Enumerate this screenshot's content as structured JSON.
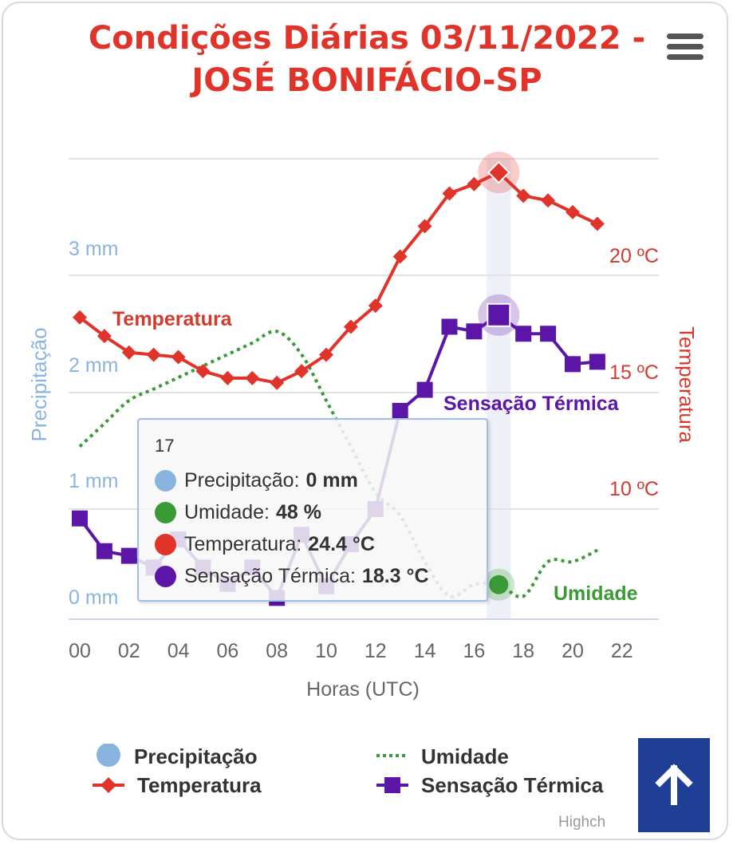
{
  "title_line1": "Condições Diárias 03/11/2022 -",
  "title_line2": "JOSÉ BONIFÁCIO-SP",
  "menu_icon": "hamburger-icon",
  "credits": "Highch",
  "colors": {
    "title": "#e0332a",
    "precip": "#8ab4e0",
    "umidade": "#3a9a35",
    "temperatura": "#e0332a",
    "sensacao": "#5b16a8",
    "button": "#1f3f96"
  },
  "chart_data": {
    "type": "line",
    "title": "Condições Diárias 03/11/2022 - JOSÉ BONIFÁCIO-SP",
    "xlabel": "Horas (UTC)",
    "x": [
      0,
      1,
      2,
      3,
      4,
      5,
      6,
      7,
      8,
      9,
      10,
      11,
      12,
      13,
      14,
      15,
      16,
      17,
      18,
      19,
      20,
      21
    ],
    "x_ticks": [
      "00",
      "02",
      "04",
      "06",
      "08",
      "10",
      "12",
      "14",
      "16",
      "18",
      "20",
      "22"
    ],
    "left_axis": {
      "title": "Precipitação",
      "ticks": [
        "0 mm",
        "1 mm",
        "2 mm",
        "3 mm"
      ],
      "range": [
        0,
        3.9
      ]
    },
    "right_axis": {
      "title": "Temperatura",
      "ticks": [
        "10 ºC",
        "15 ºC",
        "20 ºC"
      ],
      "range": [
        5.5,
        25
      ]
    },
    "humidity_axis_range": [
      45,
      85
    ],
    "series": [
      {
        "name": "Precipitação",
        "axis": "left",
        "values": [
          0,
          0,
          0,
          0,
          0,
          0,
          0,
          0,
          0,
          0,
          0,
          0,
          0,
          0,
          0,
          0,
          0,
          0,
          0,
          0,
          0,
          0
        ]
      },
      {
        "name": "Umidade",
        "axis": "humidity",
        "label": "Umidade",
        "values": [
          60,
          62,
          64,
          65,
          66,
          67,
          68,
          69,
          70,
          68,
          64,
          60,
          56,
          54,
          50,
          47,
          48,
          48,
          47,
          50,
          50,
          51
        ]
      },
      {
        "name": "Temperatura",
        "axis": "right",
        "label": "Temperatura",
        "values": [
          18.2,
          17.4,
          16.7,
          16.6,
          16.5,
          15.9,
          15.6,
          15.6,
          15.4,
          15.9,
          16.6,
          17.8,
          18.7,
          20.8,
          22.1,
          23.5,
          23.9,
          24.4,
          23.4,
          23.2,
          22.7,
          22.2
        ]
      },
      {
        "name": "Sensação Térmica",
        "axis": "right",
        "label": "Sensação Térmica",
        "values": [
          9.6,
          8.2,
          8.0,
          7.5,
          8.7,
          7.5,
          6.8,
          7.5,
          6.2,
          8.9,
          6.7,
          8.5,
          10.0,
          14.2,
          15.1,
          17.8,
          17.6,
          18.3,
          17.5,
          17.5,
          16.2,
          16.3
        ]
      }
    ],
    "highlight_x": 17,
    "legend_position": "bottom"
  },
  "tooltip": {
    "header": "17",
    "rows": [
      {
        "label": "Precipitação:",
        "value": "0 mm"
      },
      {
        "label": "Umidade:",
        "value": "48 %"
      },
      {
        "label": "Temperatura:",
        "value": "24.4 °C"
      },
      {
        "label": "Sensação Térmica:",
        "value": "18.3 °C"
      }
    ]
  },
  "legend": [
    "Precipitação",
    "Umidade",
    "Temperatura",
    "Sensação Térmica"
  ],
  "back_to_top_icon": "arrow-up-icon"
}
